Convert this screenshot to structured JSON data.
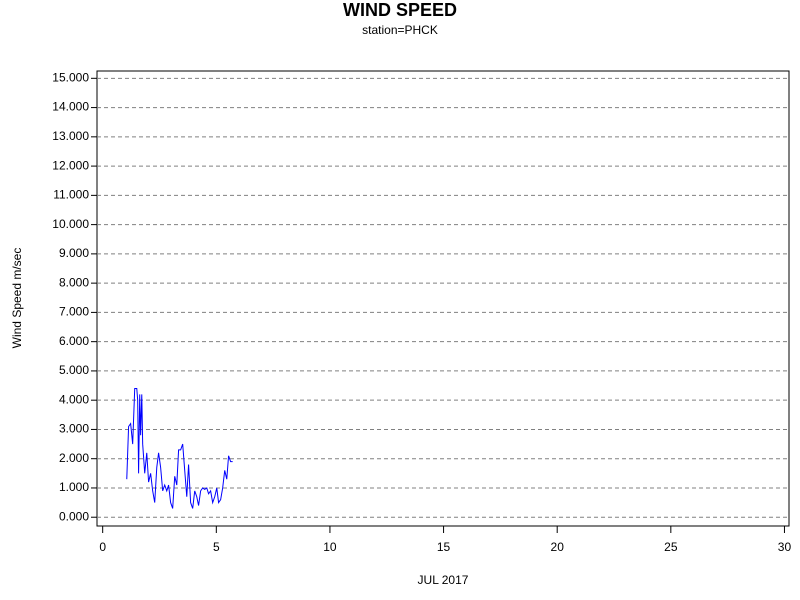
{
  "chart_data": {
    "type": "line",
    "title": "WIND SPEED",
    "subtitle": "station=PHCK",
    "y_label": "Wind Speed m/sec",
    "x_label": "JUL 2017",
    "x": [
      1.06,
      1.14,
      1.23,
      1.32,
      1.41,
      1.5,
      1.54,
      1.58,
      1.63,
      1.67,
      1.72,
      1.76,
      1.85,
      1.94,
      2.02,
      2.11,
      2.2,
      2.29,
      2.38,
      2.46,
      2.55,
      2.64,
      2.73,
      2.82,
      2.9,
      2.99,
      3.08,
      3.17,
      3.26,
      3.34,
      3.43,
      3.52,
      3.61,
      3.7,
      3.78,
      3.87,
      3.96,
      4.05,
      4.14,
      4.22,
      4.31,
      4.4,
      4.49,
      4.58,
      4.66,
      4.75,
      4.84,
      4.93,
      5.02,
      5.1,
      5.19,
      5.28,
      5.37,
      5.46,
      5.54,
      5.63,
      5.72
    ],
    "series": [
      {
        "name": "Wind Speed",
        "color": "#0000ff",
        "values": [
          1.3,
          3.1,
          3.2,
          2.5,
          4.4,
          4.4,
          4.0,
          1.5,
          4.2,
          2.8,
          4.2,
          2.5,
          1.5,
          2.2,
          1.2,
          1.5,
          0.9,
          0.5,
          1.7,
          2.2,
          1.7,
          0.9,
          1.1,
          0.9,
          1.1,
          0.5,
          0.3,
          1.4,
          1.1,
          2.3,
          2.3,
          2.5,
          1.6,
          0.7,
          1.8,
          0.5,
          0.3,
          0.9,
          0.7,
          0.4,
          0.9,
          1.0,
          0.95,
          1.0,
          0.8,
          0.9,
          0.5,
          0.7,
          1.0,
          0.5,
          0.6,
          1.0,
          1.6,
          1.3,
          2.1,
          1.9,
          1.9
        ]
      }
    ],
    "xlim": [
      -0.25,
      30.2
    ],
    "xticks": [
      0,
      5,
      10,
      15,
      20,
      25,
      30
    ],
    "ylim": [
      -0.3,
      15.25
    ],
    "yticks": [
      {
        "value": 0,
        "label": "0.000"
      },
      {
        "value": 1,
        "label": "1.000"
      },
      {
        "value": 2,
        "label": "2.000"
      },
      {
        "value": 3,
        "label": "3.000"
      },
      {
        "value": 4,
        "label": "4.000"
      },
      {
        "value": 5,
        "label": "5.000"
      },
      {
        "value": 6,
        "label": "6.000"
      },
      {
        "value": 7,
        "label": "7.000"
      },
      {
        "value": 8,
        "label": "8.000"
      },
      {
        "value": 9,
        "label": "9.000"
      },
      {
        "value": 10,
        "label": "10.000"
      },
      {
        "value": 11,
        "label": "11.000"
      },
      {
        "value": 12,
        "label": "12.000"
      },
      {
        "value": 13,
        "label": "13.000"
      },
      {
        "value": 14,
        "label": "14.000"
      },
      {
        "value": 15,
        "label": "15.000"
      }
    ],
    "grid": true
  }
}
